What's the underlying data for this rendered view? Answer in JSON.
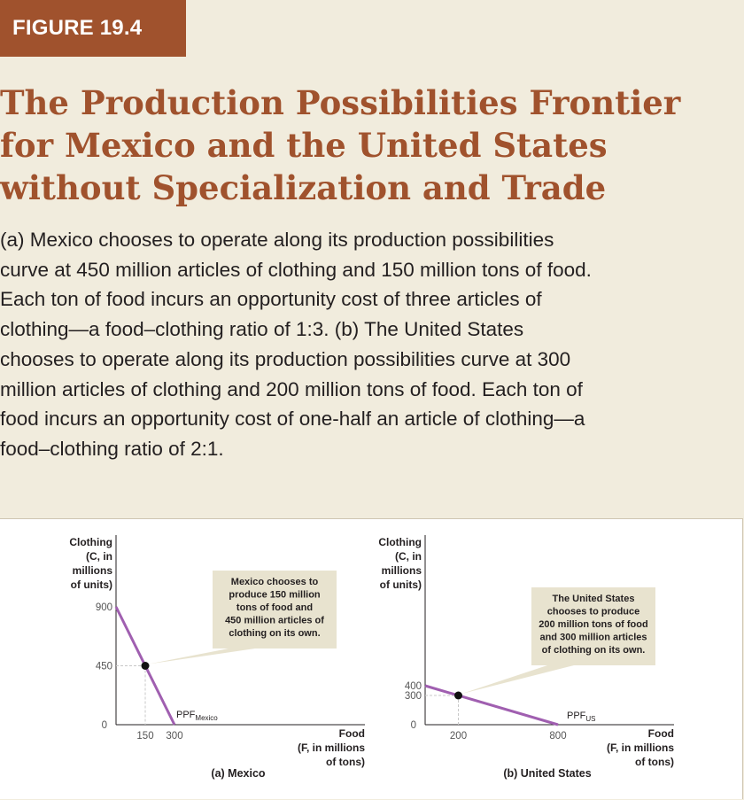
{
  "figure_label": "FIGURE 19.4",
  "title_lines": [
    "The Production Possibilities Frontier",
    "for Mexico and the United States",
    "without Specialization and Trade"
  ],
  "caption_lines": [
    "(a) Mexico chooses to operate along its production possibilities",
    "curve at 450 million articles of clothing and 150 million tons of food.",
    "Each ton of food incurs an opportunity cost of three articles of",
    "clothing—a food–clothing ratio of 1:3. (b) The United States",
    "chooses to operate along its production possibilities curve at 300",
    "million articles of clothing and 200 million tons of food. Each ton of",
    "food incurs an opportunity cost of one-half an article of clothing—a",
    "food–clothing ratio of 2:1."
  ],
  "colors": {
    "accent": "#a0522d",
    "ppf_line": "#a05fb0",
    "callout": "#e8e3cf",
    "guide": "#c8c8c8",
    "background": "#f1ecdd"
  },
  "chart_data": [
    {
      "type": "line",
      "panel_label": "(a) Mexico",
      "ylabel": [
        "Clothing",
        "(C, in",
        "millions",
        "of units)"
      ],
      "xlabel": [
        "Food",
        "(F, in millions",
        "of tons)"
      ],
      "xlim": [
        0,
        300
      ],
      "ylim": [
        0,
        900
      ],
      "x_ticks": [
        150,
        300
      ],
      "y_ticks": [
        0,
        450,
        900
      ],
      "origin_label": "0",
      "series": [
        {
          "name": "PPF",
          "name_sub": "Mexico",
          "points": [
            [
              0,
              900
            ],
            [
              300,
              0
            ]
          ]
        }
      ],
      "chosen_point": [
        150,
        450
      ],
      "annotation": [
        "Mexico chooses to",
        "produce 150 million",
        "tons of food and",
        "450 million articles of",
        "clothing on its own."
      ]
    },
    {
      "type": "line",
      "panel_label": "(b) United States",
      "ylabel": [
        "Clothing",
        "(C, in",
        "millions",
        "of units)"
      ],
      "xlabel": [
        "Food",
        "(F, in millions",
        "of tons)"
      ],
      "xlim": [
        0,
        800
      ],
      "ylim": [
        0,
        400
      ],
      "x_ticks": [
        200,
        800
      ],
      "y_ticks": [
        0,
        300,
        400
      ],
      "origin_label": "0",
      "series": [
        {
          "name": "PPF",
          "name_sub": "US",
          "points": [
            [
              0,
              400
            ],
            [
              800,
              0
            ]
          ]
        }
      ],
      "chosen_point": [
        200,
        300
      ],
      "annotation": [
        "The United States",
        "chooses to produce",
        "200 million tons of food",
        "and 300 million articles",
        "of clothing on its own."
      ]
    }
  ]
}
